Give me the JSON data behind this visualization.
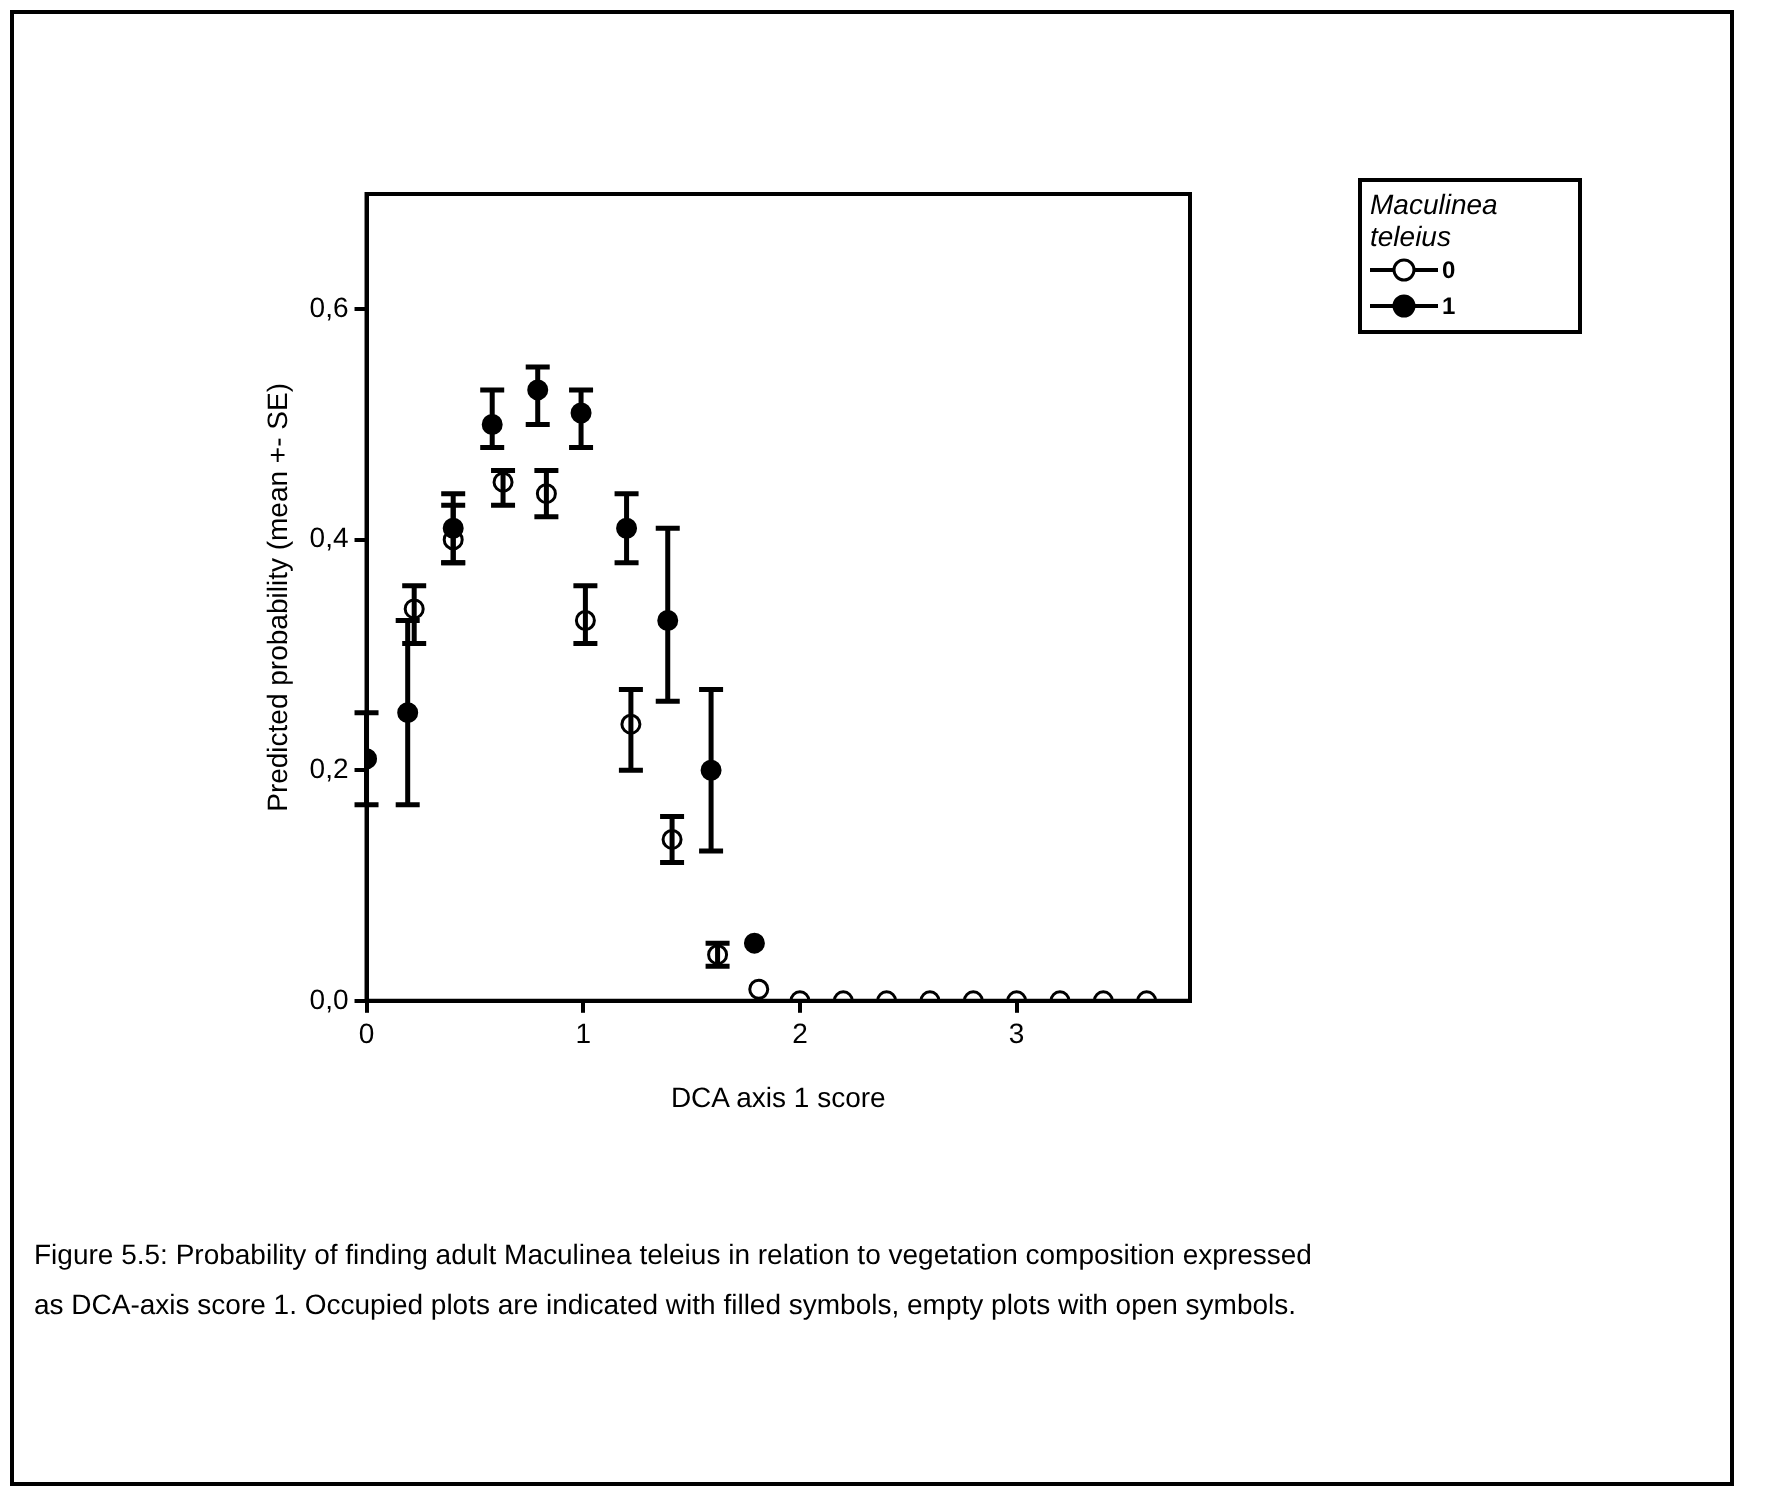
{
  "chart_data": {
    "type": "scatter",
    "xlabel": "DCA axis 1 score",
    "ylabel": "Predicted probability (mean +- SE)",
    "legend_title": "Maculinea teleius",
    "legend": "top right",
    "marker": "circle",
    "grid": false,
    "xlim": [
      0,
      3.8
    ],
    "xticks": [
      0,
      1,
      2,
      3
    ],
    "ylim": [
      0,
      0.7
    ],
    "yticks": [
      {
        "value": 0,
        "label": "0,0"
      },
      {
        "value": 0.2,
        "label": "0,2"
      },
      {
        "value": 0.4,
        "label": "0,4"
      },
      {
        "value": 0.6,
        "label": "0,6"
      }
    ],
    "series": [
      {
        "name": "0",
        "color": "#000000",
        "x": [
          0.22,
          0.4,
          0.63,
          0.83,
          1.01,
          1.22,
          1.41,
          1.62,
          1.81,
          2.0,
          2.2,
          2.4,
          2.6,
          2.8,
          3.0,
          3.2,
          3.4,
          3.6
        ],
        "values": [
          0.34,
          0.4,
          0.45,
          0.44,
          0.33,
          0.24,
          0.14,
          0.04,
          0.01,
          0,
          0,
          0,
          0,
          0,
          0,
          0,
          0,
          0
        ],
        "errors": [
          [
            0.31,
            0.36
          ],
          [
            0.38,
            0.43
          ],
          [
            0.43,
            0.46
          ],
          [
            0.42,
            0.46
          ],
          [
            0.31,
            0.36
          ],
          [
            0.2,
            0.27
          ],
          [
            0.12,
            0.16
          ],
          [
            0.03,
            0.05
          ],
          null,
          null,
          null,
          null,
          null,
          null,
          null,
          null,
          null,
          null
        ]
      },
      {
        "name": "1",
        "color": "#000000",
        "x": [
          0,
          0.19,
          0.4,
          0.58,
          0.79,
          0.99,
          1.2,
          1.39,
          1.59,
          1.79
        ],
        "values": [
          0.21,
          0.25,
          0.41,
          0.5,
          0.53,
          0.51,
          0.41,
          0.33,
          0.2,
          0.05
        ],
        "errors": [
          [
            0.17,
            0.25
          ],
          [
            0.17,
            0.33
          ],
          [
            0.38,
            0.44
          ],
          [
            0.48,
            0.53
          ],
          [
            0.5,
            0.55
          ],
          [
            0.48,
            0.53
          ],
          [
            0.38,
            0.44
          ],
          [
            0.26,
            0.41
          ],
          [
            0.13,
            0.27
          ],
          null
        ]
      }
    ],
    "annotations": [
      "Figure 5.5: Probability of finding adult Maculinea teleius in relation to vegetation composition expressed as DCA-axis score 1. Occupied plots are indicated with filled symbols, empty plots with open symbols."
    ]
  }
}
